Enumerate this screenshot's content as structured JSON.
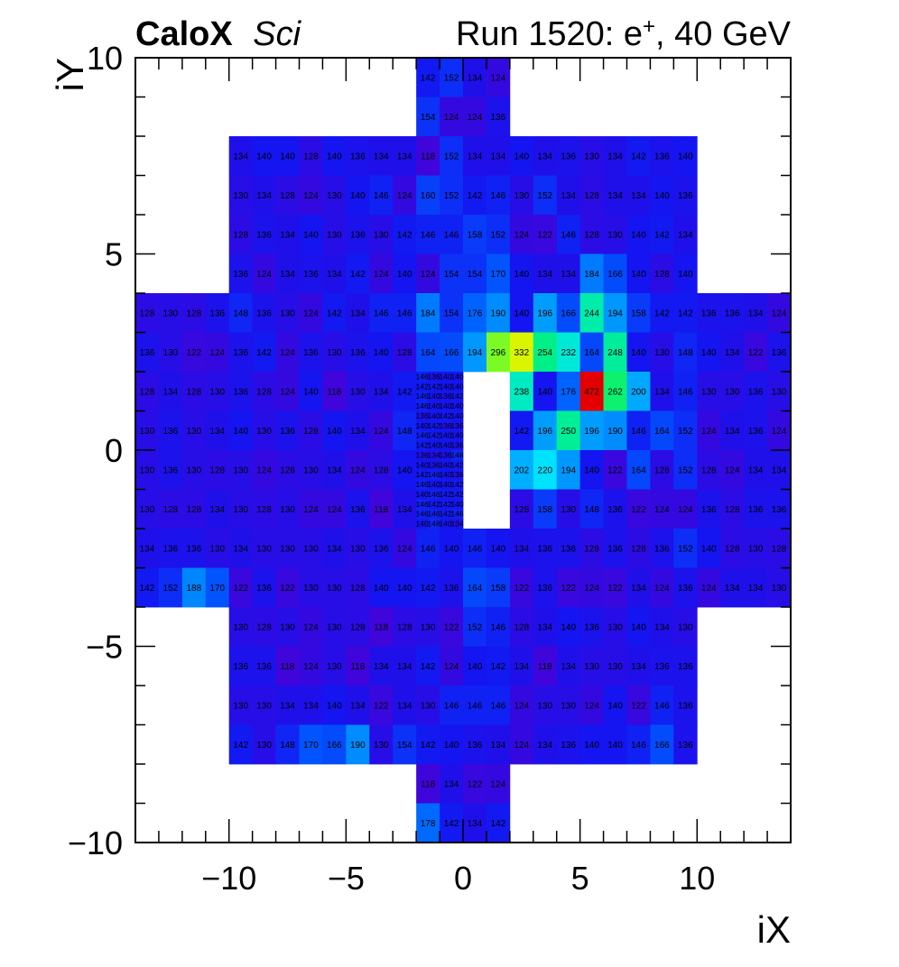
{
  "header": {
    "brand": "CaloX",
    "brand_suffix": "Sci",
    "run_prefix": "Run 1520: e",
    "run_superscript": "+",
    "run_suffix": ", 40 GeV"
  },
  "chart_data": {
    "type": "heatmap",
    "xlabel": "iX",
    "ylabel": "iY",
    "xlim": [
      -14,
      14
    ],
    "ylim": [
      -10,
      10
    ],
    "xticks": [
      -10,
      -5,
      0,
      5,
      10
    ],
    "yticks": [
      -10,
      -5,
      0,
      5,
      10
    ],
    "tick_labels_x": [
      "−10",
      "−5",
      "0",
      "5",
      "10"
    ],
    "tick_labels_y": [
      "−10",
      "−5",
      "0",
      "5",
      "10"
    ],
    "colormap": "rainbow",
    "value_range": [
      110,
      480
    ],
    "grid": false,
    "rows": [
      {
        "y0": 9,
        "y1": 10,
        "x0": -2,
        "values": [
          142,
          152,
          134,
          124
        ]
      },
      {
        "y0": 8,
        "y1": 9,
        "x0": -2,
        "values": [
          154,
          124,
          124,
          136
        ]
      },
      {
        "y0": 7,
        "y1": 8,
        "x0": -10,
        "values": [
          134,
          140,
          140,
          128,
          140,
          136,
          134,
          134,
          118,
          152,
          134,
          134,
          140,
          134,
          136,
          130,
          134,
          142,
          136,
          140
        ]
      },
      {
        "y0": 6,
        "y1": 7,
        "x0": -10,
        "values": [
          130,
          134,
          128,
          124,
          130,
          140,
          146,
          124,
          160,
          152,
          142,
          146,
          130,
          152,
          134,
          128,
          134,
          134,
          140,
          136
        ]
      },
      {
        "y0": 5,
        "y1": 6,
        "x0": -10,
        "values": [
          128,
          136,
          134,
          140,
          130,
          136,
          130,
          142,
          146,
          146,
          158,
          152,
          124,
          122,
          146,
          128,
          130,
          140,
          142,
          134
        ]
      },
      {
        "y0": 4,
        "y1": 5,
        "x0": -10,
        "values": [
          136,
          124,
          134,
          136,
          134,
          142,
          124,
          140,
          124,
          154,
          154,
          170,
          140,
          134,
          134,
          184,
          166,
          140,
          128,
          140
        ]
      },
      {
        "y0": 3,
        "y1": 4,
        "x0": -14,
        "values": [
          128,
          130,
          128,
          136,
          148,
          136,
          130,
          124,
          142,
          134,
          146,
          146,
          184,
          154,
          176,
          190,
          140,
          196,
          166,
          244,
          194,
          158,
          142,
          142,
          136,
          136,
          134,
          124
        ]
      },
      {
        "y0": 2,
        "y1": 3,
        "x0": -14,
        "values": [
          136,
          130,
          122,
          124,
          136,
          142,
          124,
          136,
          130,
          136,
          140,
          128,
          164,
          166,
          194,
          296,
          332,
          254,
          232,
          164,
          248,
          140,
          130,
          148,
          140,
          134,
          122,
          136
        ]
      },
      {
        "y0": 1,
        "y1": 2,
        "x0": -14,
        "values": [
          128,
          134,
          128,
          130,
          136,
          128,
          124,
          140,
          118,
          130,
          134,
          142,
          null,
          null,
          null,
          null,
          238,
          140,
          176,
          472,
          262,
          200,
          134,
          146,
          130,
          130,
          136,
          130
        ]
      },
      {
        "y0": 0,
        "y1": 1,
        "x0": -14,
        "values": [
          130,
          136,
          130,
          134,
          140,
          130,
          136,
          128,
          140,
          134,
          124,
          148,
          null,
          null,
          null,
          null,
          142,
          196,
          250,
          196,
          190,
          146,
          164,
          152,
          124,
          134,
          136,
          124
        ]
      },
      {
        "y0": -1,
        "y1": 0,
        "x0": -14,
        "values": [
          130,
          136,
          130,
          128,
          130,
          124,
          128,
          130,
          134,
          124,
          128,
          140,
          null,
          null,
          null,
          null,
          202,
          220,
          194,
          140,
          122,
          164,
          128,
          152,
          128,
          124,
          134,
          134
        ]
      },
      {
        "y0": -2,
        "y1": -1,
        "x0": -14,
        "values": [
          130,
          128,
          128,
          134,
          130,
          128,
          130,
          124,
          124,
          136,
          118,
          134,
          null,
          null,
          null,
          null,
          128,
          158,
          130,
          148,
          136,
          122,
          124,
          124,
          136,
          128,
          136,
          136
        ]
      },
      {
        "y0": -3,
        "y1": -2,
        "x0": -14,
        "values": [
          134,
          136,
          136,
          130,
          134,
          130,
          130,
          130,
          134,
          130,
          136,
          124,
          146,
          140,
          146,
          140,
          134,
          136,
          136,
          128,
          136,
          128,
          136,
          152,
          140,
          128,
          130,
          128
        ]
      },
      {
        "y0": -4,
        "y1": -3,
        "x0": -14,
        "values": [
          142,
          152,
          188,
          170,
          122,
          136,
          122,
          130,
          130,
          128,
          140,
          140,
          142,
          136,
          164,
          158,
          122,
          136,
          122,
          124,
          122,
          134,
          124,
          136,
          124,
          134,
          134,
          130
        ]
      },
      {
        "y0": -5,
        "y1": -4,
        "x0": -10,
        "values": [
          130,
          128,
          130,
          124,
          130,
          128,
          118,
          128,
          130,
          122,
          152,
          146,
          128,
          134,
          140,
          136,
          130,
          140,
          134,
          130
        ]
      },
      {
        "y0": -6,
        "y1": -5,
        "x0": -10,
        "values": [
          136,
          136,
          118,
          124,
          130,
          118,
          134,
          134,
          142,
          124,
          140,
          142,
          134,
          118,
          134,
          130,
          130,
          134,
          136,
          136
        ]
      },
      {
        "y0": -7,
        "y1": -6,
        "x0": -10,
        "values": [
          130,
          130,
          134,
          134,
          140,
          134,
          122,
          134,
          130,
          146,
          146,
          146,
          124,
          130,
          130,
          124,
          140,
          122,
          146,
          136
        ]
      },
      {
        "y0": -8,
        "y1": -7,
        "x0": -10,
        "values": [
          142,
          130,
          148,
          170,
          166,
          190,
          130,
          154,
          142,
          140,
          136,
          134,
          124,
          134,
          136,
          140,
          140,
          146,
          166,
          136
        ]
      },
      {
        "y0": -9,
        "y1": -8,
        "x0": -2,
        "values": [
          118,
          134,
          122,
          124
        ]
      },
      {
        "y0": -10,
        "y1": -9,
        "x0": -2,
        "values": [
          178,
          142,
          134,
          142
        ]
      }
    ],
    "fine_cells": {
      "x0": -2,
      "cell_width": 0.5,
      "cell_height": 0.25,
      "y_top": 2,
      "rows": [
        [
          146,
          136,
          140,
          140
        ],
        [
          142,
          142,
          140,
          140
        ],
        [
          146,
          140,
          136,
          142
        ],
        [
          146,
          140,
          140,
          140
        ],
        [
          136,
          140,
          142,
          140
        ],
        [
          140,
          142,
          136,
          136
        ],
        [
          146,
          142,
          140,
          140
        ],
        [
          142,
          140,
          140,
          136
        ],
        [
          136,
          134,
          136,
          148
        ],
        [
          140,
          136,
          140,
          142
        ],
        [
          142,
          146,
          140,
          136
        ],
        [
          146,
          140,
          140,
          142
        ],
        [
          140,
          146,
          142,
          142
        ],
        [
          146,
          142,
          142,
          140
        ],
        [
          146,
          146,
          142,
          146
        ],
        [
          140,
          148,
          140,
          134
        ]
      ]
    }
  }
}
